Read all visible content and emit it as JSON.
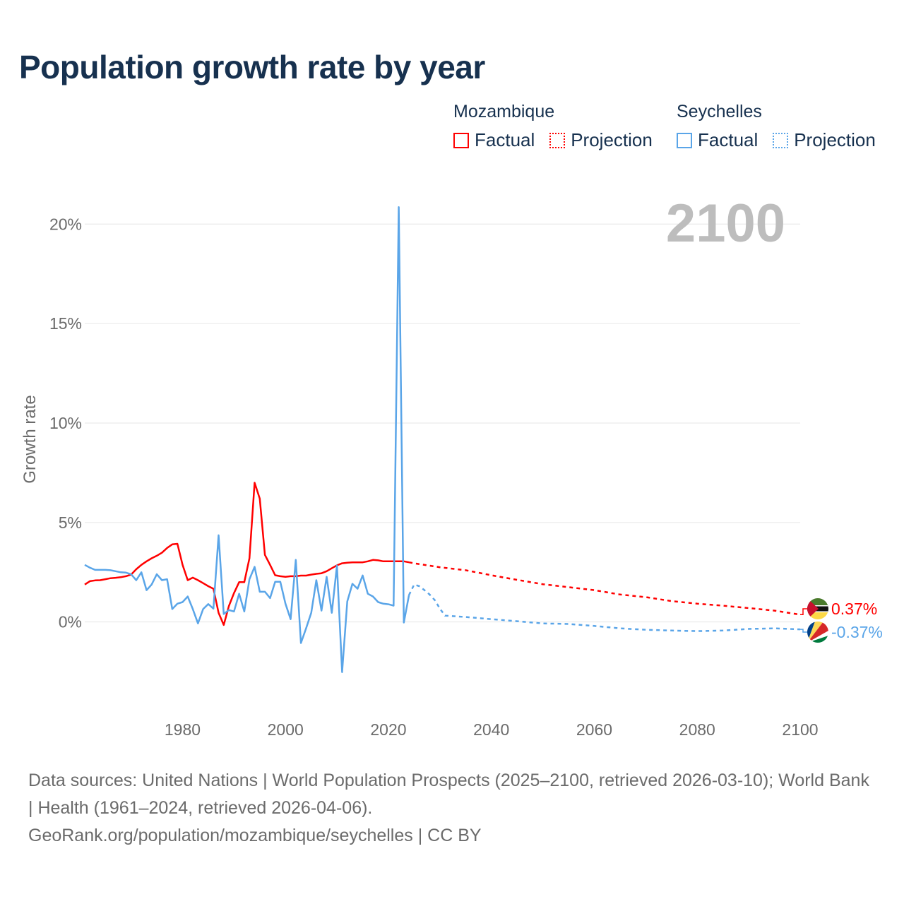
{
  "title": "Population growth rate by year",
  "legend": {
    "groups": [
      {
        "name": "Mozambique",
        "color": "#ff0000",
        "items": [
          "Factual",
          "Projection"
        ]
      },
      {
        "name": "Seychelles",
        "color": "#5aa5e8",
        "items": [
          "Factual",
          "Projection"
        ]
      }
    ]
  },
  "year_label": "2100",
  "footer": {
    "sources": "Data sources: United Nations | World Population Prospects (2025–2100, retrieved 2026-03-10); World Bank | Health (1961–2024, retrieved 2026-04-06).",
    "link": "GeoRank.org/population/mozambique/seychelles | CC BY"
  },
  "chart_data": {
    "type": "line",
    "title": "Population growth rate by year",
    "xlabel": "",
    "ylabel": "Growth rate",
    "xlim": [
      1961,
      2100
    ],
    "ylim": [
      -4.2,
      21.5
    ],
    "xticks": [
      1980,
      2000,
      2020,
      2040,
      2060,
      2080,
      2100
    ],
    "xtick_labels": [
      "1980",
      "2000",
      "2020",
      "2040",
      "2060",
      "2080",
      "2100"
    ],
    "yticks": [
      0,
      5,
      10,
      15,
      20
    ],
    "ytick_labels": [
      "0%",
      "5%",
      "10%",
      "15%",
      "20%"
    ],
    "grid": true,
    "legend_position": "top-right",
    "series": [
      {
        "name": "Mozambique",
        "color": "#ff0000",
        "end_label": "0.37%",
        "factual": {
          "x": [
            1961,
            1962,
            1963,
            1964,
            1965,
            1966,
            1967,
            1968,
            1969,
            1970,
            1971,
            1972,
            1973,
            1974,
            1975,
            1976,
            1977,
            1978,
            1979,
            1980,
            1981,
            1982,
            1983,
            1984,
            1985,
            1986,
            1987,
            1988,
            1989,
            1990,
            1991,
            1992,
            1993,
            1994,
            1995,
            1996,
            1997,
            1998,
            1999,
            2000,
            2001,
            2002,
            2003,
            2004,
            2005,
            2006,
            2007,
            2008,
            2009,
            2010,
            2011,
            2012,
            2013,
            2014,
            2015,
            2016,
            2017,
            2018,
            2019,
            2020,
            2021,
            2022,
            2023,
            2024
          ],
          "y": [
            1.88,
            2.05,
            2.09,
            2.1,
            2.15,
            2.2,
            2.22,
            2.25,
            2.3,
            2.38,
            2.65,
            2.87,
            3.05,
            3.2,
            3.33,
            3.48,
            3.72,
            3.9,
            3.93,
            2.87,
            2.1,
            2.23,
            2.1,
            1.95,
            1.8,
            1.67,
            0.46,
            -0.15,
            0.8,
            1.45,
            2.0,
            2.0,
            3.2,
            7.0,
            6.2,
            3.37,
            2.87,
            2.35,
            2.3,
            2.27,
            2.3,
            2.3,
            2.33,
            2.33,
            2.38,
            2.42,
            2.45,
            2.55,
            2.7,
            2.85,
            2.95,
            2.98,
            3.0,
            3.0,
            3.0,
            3.05,
            3.12,
            3.1,
            3.05,
            3.05,
            3.05,
            3.05,
            3.05,
            3.0
          ]
        },
        "projection": {
          "x": [
            2024,
            2025,
            2030,
            2035,
            2040,
            2045,
            2050,
            2055,
            2060,
            2065,
            2070,
            2075,
            2080,
            2085,
            2090,
            2095,
            2100
          ],
          "y": [
            3.0,
            2.95,
            2.75,
            2.6,
            2.35,
            2.12,
            1.9,
            1.75,
            1.6,
            1.38,
            1.25,
            1.05,
            0.92,
            0.82,
            0.7,
            0.57,
            0.37
          ]
        }
      },
      {
        "name": "Seychelles",
        "color": "#5aa5e8",
        "end_label": "-0.37%",
        "factual": {
          "x": [
            1961,
            1962,
            1963,
            1964,
            1965,
            1966,
            1967,
            1968,
            1969,
            1970,
            1971,
            1972,
            1973,
            1974,
            1975,
            1976,
            1977,
            1978,
            1979,
            1980,
            1981,
            1982,
            1983,
            1984,
            1985,
            1986,
            1987,
            1988,
            1989,
            1990,
            1991,
            1992,
            1993,
            1994,
            1995,
            1996,
            1997,
            1998,
            1999,
            2000,
            2001,
            2002,
            2003,
            2004,
            2005,
            2006,
            2007,
            2008,
            2009,
            2010,
            2011,
            2012,
            2013,
            2014,
            2015,
            2016,
            2017,
            2018,
            2019,
            2020,
            2021,
            2022,
            2023,
            2024
          ],
          "y": [
            2.87,
            2.73,
            2.62,
            2.62,
            2.62,
            2.6,
            2.55,
            2.5,
            2.48,
            2.4,
            2.1,
            2.5,
            1.6,
            1.88,
            2.4,
            2.1,
            2.15,
            0.65,
            0.92,
            1.0,
            1.28,
            0.65,
            -0.07,
            0.65,
            0.9,
            0.67,
            4.36,
            0.4,
            0.6,
            0.53,
            1.42,
            0.53,
            2.15,
            2.77,
            1.52,
            1.52,
            1.2,
            2.02,
            2.02,
            0.92,
            0.14,
            3.12,
            -1.06,
            -0.32,
            0.46,
            2.1,
            0.57,
            2.27,
            0.46,
            2.84,
            -2.52,
            1.03,
            1.92,
            1.67,
            2.34,
            1.42,
            1.28,
            1.0,
            0.92,
            0.89,
            0.82,
            20.85,
            -0.03,
            1.35
          ]
        },
        "projection": {
          "x": [
            2024,
            2025,
            2026,
            2027,
            2028,
            2029,
            2030,
            2031,
            2035,
            2040,
            2045,
            2050,
            2055,
            2060,
            2065,
            2070,
            2075,
            2080,
            2085,
            2090,
            2095,
            2100
          ],
          "y": [
            1.35,
            1.88,
            1.8,
            1.6,
            1.38,
            1.1,
            0.67,
            0.32,
            0.25,
            0.14,
            0.04,
            -0.07,
            -0.1,
            -0.2,
            -0.32,
            -0.39,
            -0.43,
            -0.46,
            -0.43,
            -0.35,
            -0.32,
            -0.37
          ]
        }
      }
    ]
  }
}
